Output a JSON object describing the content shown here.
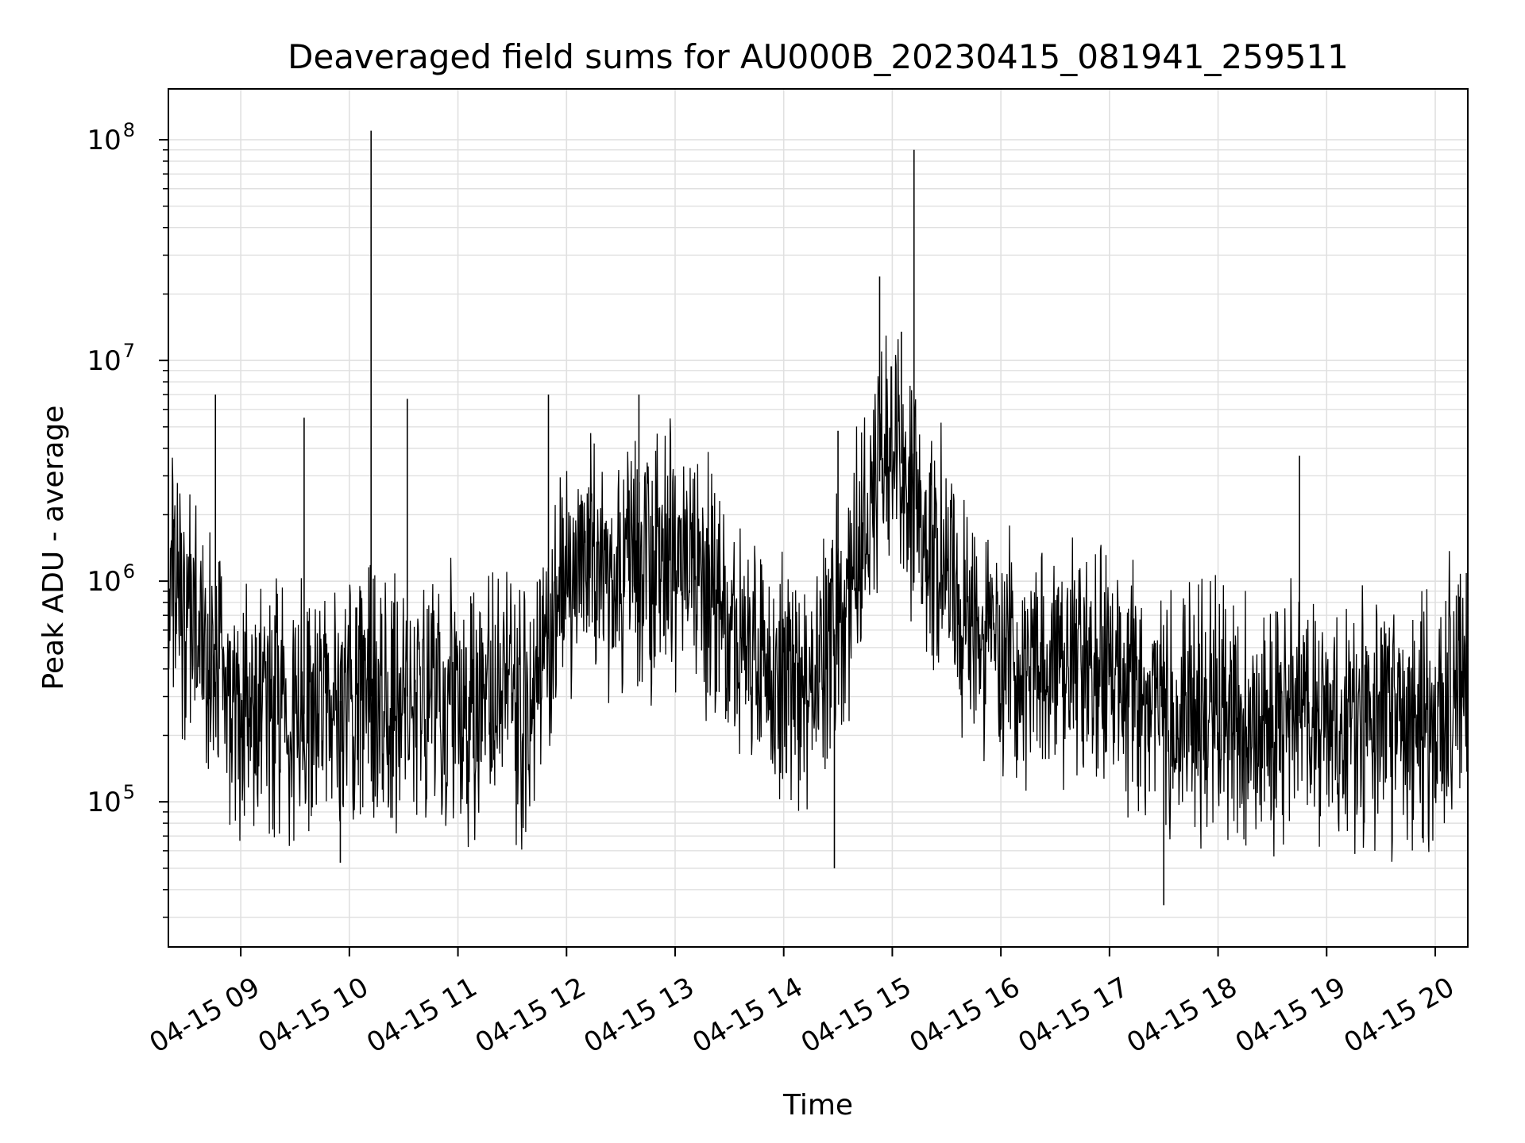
{
  "chart_data": {
    "type": "line",
    "title": "Deaveraged field sums for AU000B_20230415_081941_259511",
    "xlabel": "Time",
    "ylabel": "Peak ADU - average",
    "yscale": "log",
    "ylim": [
      22000,
      170000000
    ],
    "xlim": [
      "2023-04-15 08:20",
      "2023-04-15 20:18"
    ],
    "x_tick_labels": [
      "04-15 09",
      "04-15 10",
      "04-15 11",
      "04-15 12",
      "04-15 13",
      "04-15 14",
      "04-15 15",
      "04-15 16",
      "04-15 17",
      "04-15 18",
      "04-15 19",
      "04-15 20"
    ],
    "y_tick_labels": [
      {
        "base": "10",
        "exp": "5",
        "value": 100000
      },
      {
        "base": "10",
        "exp": "6",
        "value": 1000000
      },
      {
        "base": "10",
        "exp": "7",
        "value": 10000000
      },
      {
        "base": "10",
        "exp": "8",
        "value": 100000000
      }
    ],
    "grid": true,
    "line_color": "#000000",
    "grid_color": "#e0e0e0",
    "series": [
      {
        "x": [
          "2023-04-15 08:20",
          "2023-04-15 08:40",
          "2023-04-15 09:00",
          "2023-04-15 09:20",
          "2023-04-15 09:40",
          "2023-04-15 10:00",
          "2023-04-15 10:20",
          "2023-04-15 10:40",
          "2023-04-15 11:00",
          "2023-04-15 11:20",
          "2023-04-15 11:40",
          "2023-04-15 12:00",
          "2023-04-15 12:20",
          "2023-04-15 12:40",
          "2023-04-15 13:00",
          "2023-04-15 13:20",
          "2023-04-15 13:40",
          "2023-04-15 14:00",
          "2023-04-15 14:20",
          "2023-04-15 14:40",
          "2023-04-15 15:00",
          "2023-04-15 15:20",
          "2023-04-15 15:40",
          "2023-04-15 16:00",
          "2023-04-15 16:20",
          "2023-04-15 16:40",
          "2023-04-15 17:00",
          "2023-04-15 17:20",
          "2023-04-15 17:40",
          "2023-04-15 18:00",
          "2023-04-15 18:20",
          "2023-04-15 18:40",
          "2023-04-15 19:00",
          "2023-04-15 19:20",
          "2023-04-15 19:40",
          "2023-04-15 20:00",
          "2023-04-15 20:18"
        ],
        "y": [
          900000,
          600000,
          300000,
          250000,
          250000,
          300000,
          300000,
          300000,
          280000,
          280000,
          250000,
          1200000,
          1200000,
          1100000,
          1300000,
          900000,
          500000,
          350000,
          350000,
          1200000,
          4500000,
          1500000,
          800000,
          500000,
          400000,
          380000,
          400000,
          300000,
          250000,
          250000,
          230000,
          250000,
          230000,
          220000,
          230000,
          220000,
          450000
        ]
      }
    ],
    "spikes": [
      {
        "x": "2023-04-15 10:12",
        "y": 110000000
      },
      {
        "x": "2023-04-15 15:12",
        "y": 90000000
      },
      {
        "x": "2023-04-15 14:53",
        "y": 24000000
      },
      {
        "x": "2023-04-15 15:05",
        "y": 13500000
      },
      {
        "x": "2023-04-15 08:46",
        "y": 7000000
      },
      {
        "x": "2023-04-15 10:32",
        "y": 6700000
      },
      {
        "x": "2023-04-15 11:50",
        "y": 7000000
      },
      {
        "x": "2023-04-15 12:40",
        "y": 7000000
      },
      {
        "x": "2023-04-15 09:35",
        "y": 5500000
      },
      {
        "x": "2023-04-15 14:30",
        "y": 4800000
      },
      {
        "x": "2023-04-15 18:45",
        "y": 3700000
      },
      {
        "x": "2023-04-15 17:30",
        "y": 34000
      },
      {
        "x": "2023-04-15 14:28",
        "y": 50000
      },
      {
        "x": "2023-04-15 09:55",
        "y": 53000
      }
    ]
  }
}
